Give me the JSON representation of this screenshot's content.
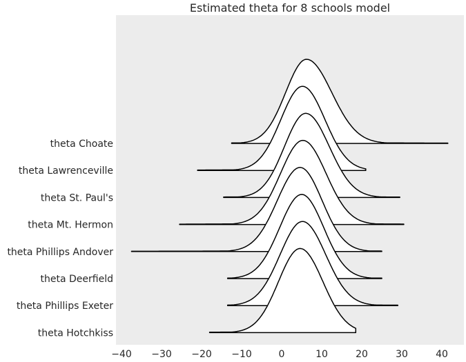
{
  "chart_data": {
    "type": "ridgeline",
    "title": "Estimated theta for 8 schools model",
    "xlabel": "",
    "ylabel": "",
    "xlim": [
      -42,
      45
    ],
    "xticks": [
      -40,
      -30,
      -20,
      -10,
      0,
      10,
      20,
      30,
      40
    ],
    "grid": false,
    "background": "#ececec",
    "line_color": "#000000",
    "fill_color": "#ffffff",
    "series": [
      {
        "name": "theta Choate",
        "mode": 6.2,
        "sd_left": 5.2,
        "sd_right": 6.3,
        "min": -12.5,
        "max": 41.5
      },
      {
        "name": "theta Lawrenceville",
        "mode": 5.2,
        "sd_left": 5.4,
        "sd_right": 5.6,
        "min": -21.0,
        "max": 21.0
      },
      {
        "name": "theta St. Paul's",
        "mode": 6.0,
        "sd_left": 5.3,
        "sd_right": 5.9,
        "min": -14.5,
        "max": 29.5
      },
      {
        "name": "theta Mt. Hermon",
        "mode": 5.3,
        "sd_left": 5.6,
        "sd_right": 5.8,
        "min": -25.5,
        "max": 30.5
      },
      {
        "name": "theta Phillips Andover",
        "mode": 4.6,
        "sd_left": 5.7,
        "sd_right": 5.5,
        "min": -37.5,
        "max": 25.0
      },
      {
        "name": "theta Deerfield",
        "mode": 5.0,
        "sd_left": 5.5,
        "sd_right": 5.5,
        "min": -13.5,
        "max": 25.0
      },
      {
        "name": "theta Phillips Exeter",
        "mode": 5.2,
        "sd_left": 5.6,
        "sd_right": 5.8,
        "min": -13.5,
        "max": 29.0
      },
      {
        "name": "theta Hotchkiss",
        "mode": 4.6,
        "sd_left": 5.4,
        "sd_right": 5.7,
        "min": -18.0,
        "max": 18.5
      }
    ]
  }
}
